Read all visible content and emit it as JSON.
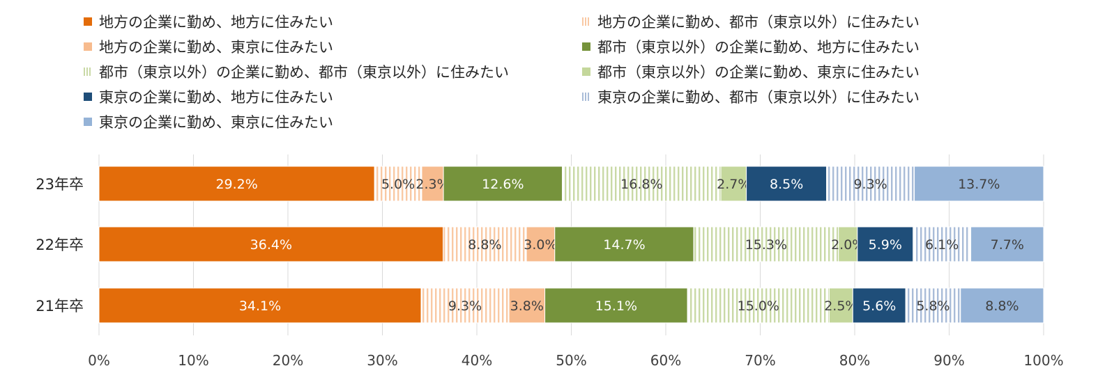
{
  "chart_data": {
    "type": "bar",
    "orientation": "horizontal",
    "stacked": "100%",
    "categories": [
      "23年卒",
      "22年卒",
      "21年卒"
    ],
    "series": [
      {
        "name": "地方の企業に勤め、地方に住みたい",
        "color": "#E36C0A",
        "pattern": "solid",
        "label_color": "#ffffff",
        "values": [
          29.2,
          36.4,
          34.1
        ]
      },
      {
        "name": "地方の企業に勤め、都市（東京以外）に住みたい",
        "color": "#F9C9A4",
        "pattern": "vertical-stripes",
        "label_color": "#404040",
        "values": [
          5.0,
          8.8,
          9.3
        ]
      },
      {
        "name": "地方の企業に勤め、東京に住みたい",
        "color": "#F7BB8E",
        "pattern": "solid",
        "label_color": "#404040",
        "values": [
          2.3,
          3.0,
          3.8
        ]
      },
      {
        "name": "都市（東京以外）の企業に勤め、地方に住みたい",
        "color": "#76933C",
        "pattern": "solid",
        "label_color": "#ffffff",
        "values": [
          12.6,
          14.7,
          15.1
        ]
      },
      {
        "name": "都市（東京以外）の企業に勤め、都市（東京以外）に住みたい",
        "color": "#C9D9A6",
        "pattern": "vertical-stripes",
        "label_color": "#404040",
        "values": [
          16.8,
          15.3,
          15.0
        ]
      },
      {
        "name": "都市（東京以外）の企業に勤め、東京に住みたい",
        "color": "#C4D79B",
        "pattern": "solid",
        "label_color": "#404040",
        "values": [
          2.7,
          2.0,
          2.5
        ]
      },
      {
        "name": "東京の企業に勤め、地方に住みたい",
        "color": "#1F4E79",
        "pattern": "solid",
        "label_color": "#ffffff",
        "values": [
          8.5,
          5.9,
          5.6
        ]
      },
      {
        "name": "東京の企業に勤め、都市（東京以外）に住みたい",
        "color": "#A9BCD8",
        "pattern": "vertical-stripes",
        "label_color": "#404040",
        "values": [
          9.3,
          6.1,
          5.8
        ]
      },
      {
        "name": "東京の企業に勤め、東京に住みたい",
        "color": "#95B3D7",
        "pattern": "solid",
        "label_color": "#404040",
        "values": [
          13.7,
          7.7,
          8.8
        ]
      }
    ],
    "x_ticks": [
      "0%",
      "10%",
      "20%",
      "30%",
      "40%",
      "50%",
      "60%",
      "70%",
      "80%",
      "90%",
      "100%"
    ],
    "xlim": [
      0,
      100
    ],
    "grid": "vertical",
    "legend_position": "top",
    "title": "",
    "xlabel": "",
    "ylabel": ""
  }
}
